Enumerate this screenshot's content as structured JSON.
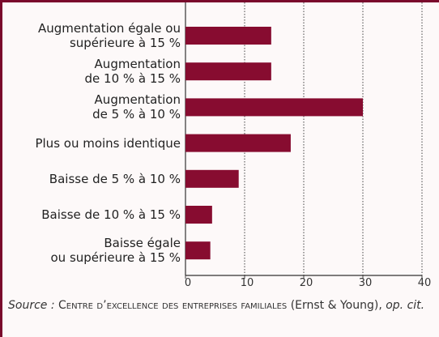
{
  "chart_data": {
    "type": "barh",
    "categories": [
      "Augmentation égale ou\nsupérieure à 15 %",
      "Augmentation\nde 10 % à 15 %",
      "Augmentation\nde 5 % à 10 %",
      "Plus ou moins identique",
      "Baisse de 5 % à 10 %",
      "Baisse de 10 % à 15 %",
      "Baisse égale\nou supérieure à 15 %"
    ],
    "values": [
      14.5,
      14.5,
      30,
      17.8,
      9,
      4.5,
      4.2
    ],
    "color": "#870c30",
    "xlim": [
      0,
      40
    ],
    "xticks": [
      0,
      10,
      20,
      30,
      40
    ],
    "grid": true,
    "source": {
      "label": "Source :",
      "org": "Centre d’excellence des entreprises familiales",
      "rest": "(Ernst & Young),",
      "ref": "op. cit."
    }
  }
}
